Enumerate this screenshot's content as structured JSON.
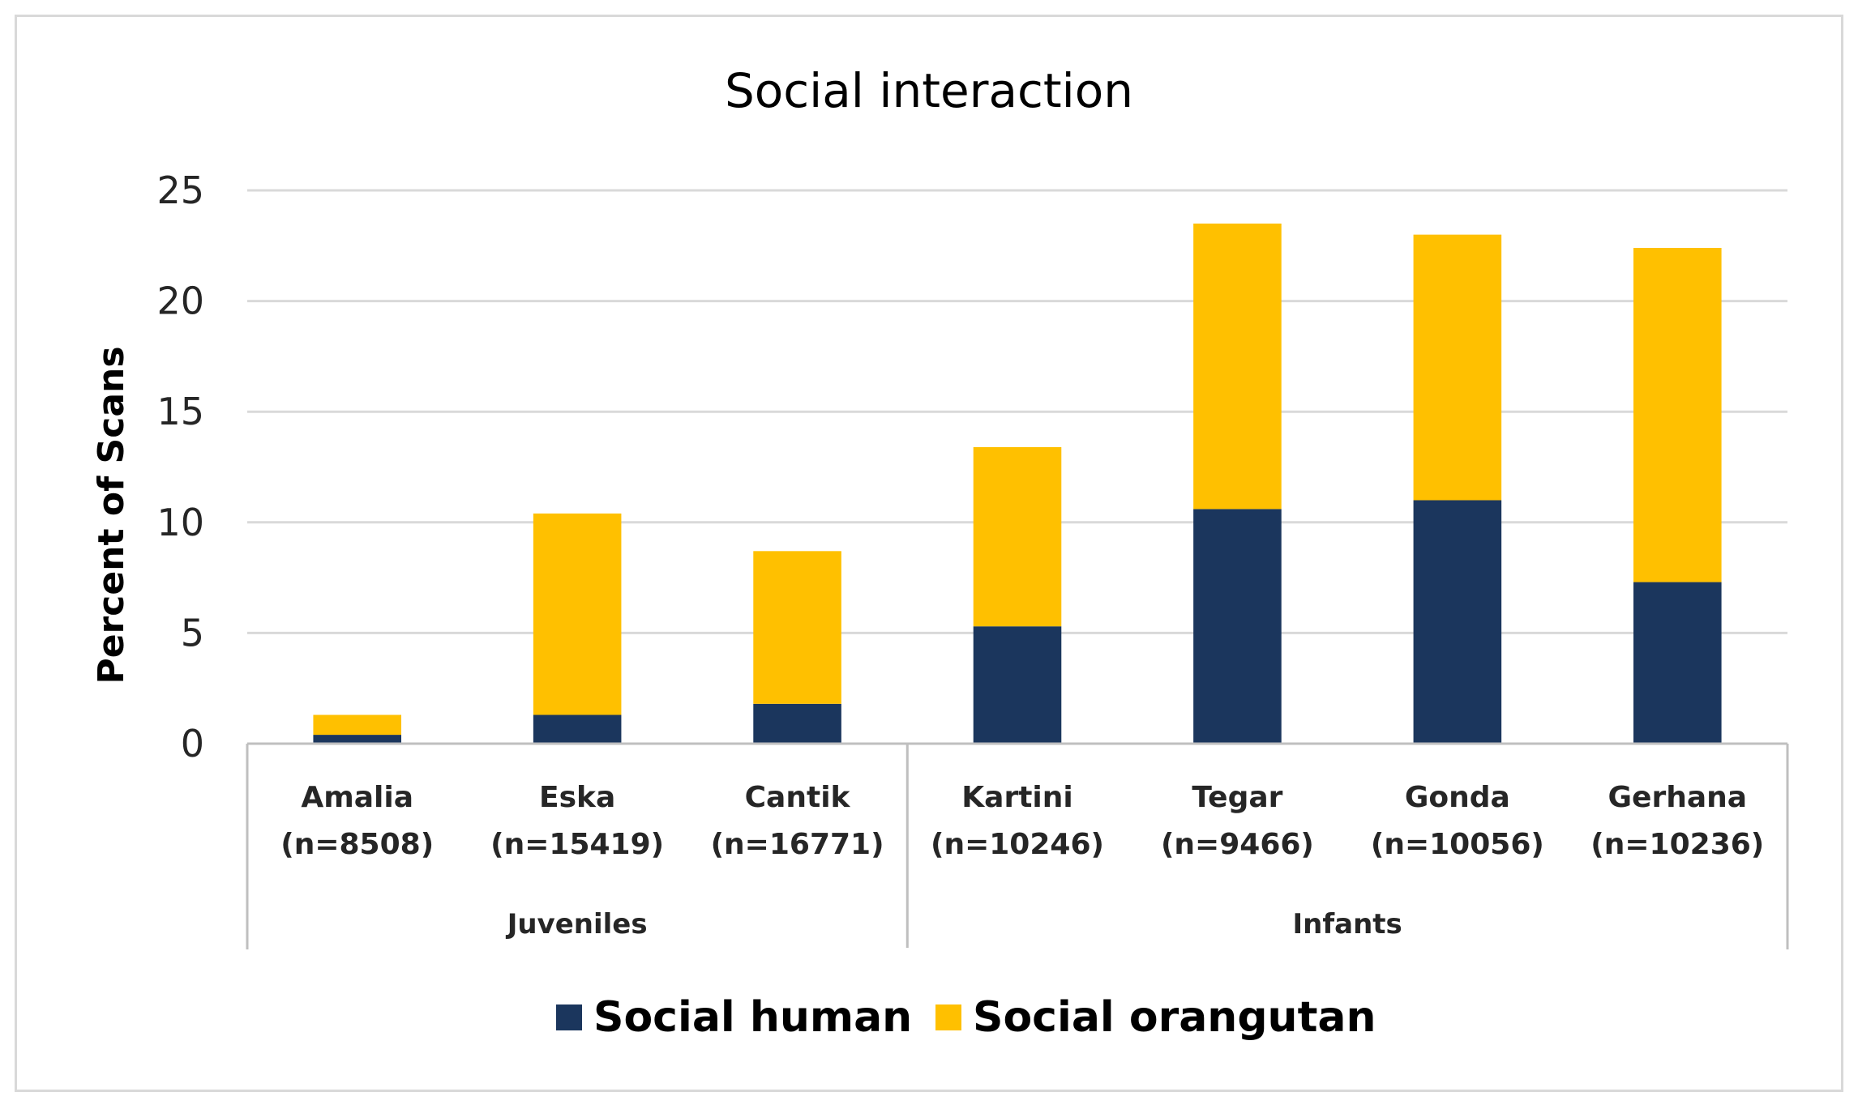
{
  "chart_data": {
    "type": "bar",
    "stacked": true,
    "title": "Social interaction",
    "xlabel": "",
    "ylabel": "Percent of Scans",
    "ylim": [
      0,
      25
    ],
    "yticks": [
      0,
      5,
      10,
      15,
      20,
      25
    ],
    "grid": true,
    "legend_position": "bottom",
    "categories": [
      {
        "name": "Amalia",
        "n": "(n=8508)"
      },
      {
        "name": "Eska",
        "n": "(n=15419)"
      },
      {
        "name": "Cantik",
        "n": "(n=16771)"
      },
      {
        "name": "Kartini",
        "n": "(n=10246)"
      },
      {
        "name": "Tegar",
        "n": "(n=9466)"
      },
      {
        "name": "Gonda",
        "n": "(n=10056)"
      },
      {
        "name": "Gerhana",
        "n": "(n=10236)"
      }
    ],
    "groups": [
      {
        "label": "Juveniles",
        "start": 0,
        "end": 2
      },
      {
        "label": "Infants",
        "start": 3,
        "end": 6
      }
    ],
    "series": [
      {
        "name": "Social human",
        "color": "#1b365d",
        "values": [
          0.4,
          1.3,
          1.8,
          5.3,
          10.6,
          11.0,
          7.3
        ]
      },
      {
        "name": "Social orangutan",
        "color": "#ffc000",
        "values": [
          0.9,
          9.1,
          6.9,
          8.1,
          12.9,
          12.0,
          15.1
        ]
      }
    ]
  }
}
